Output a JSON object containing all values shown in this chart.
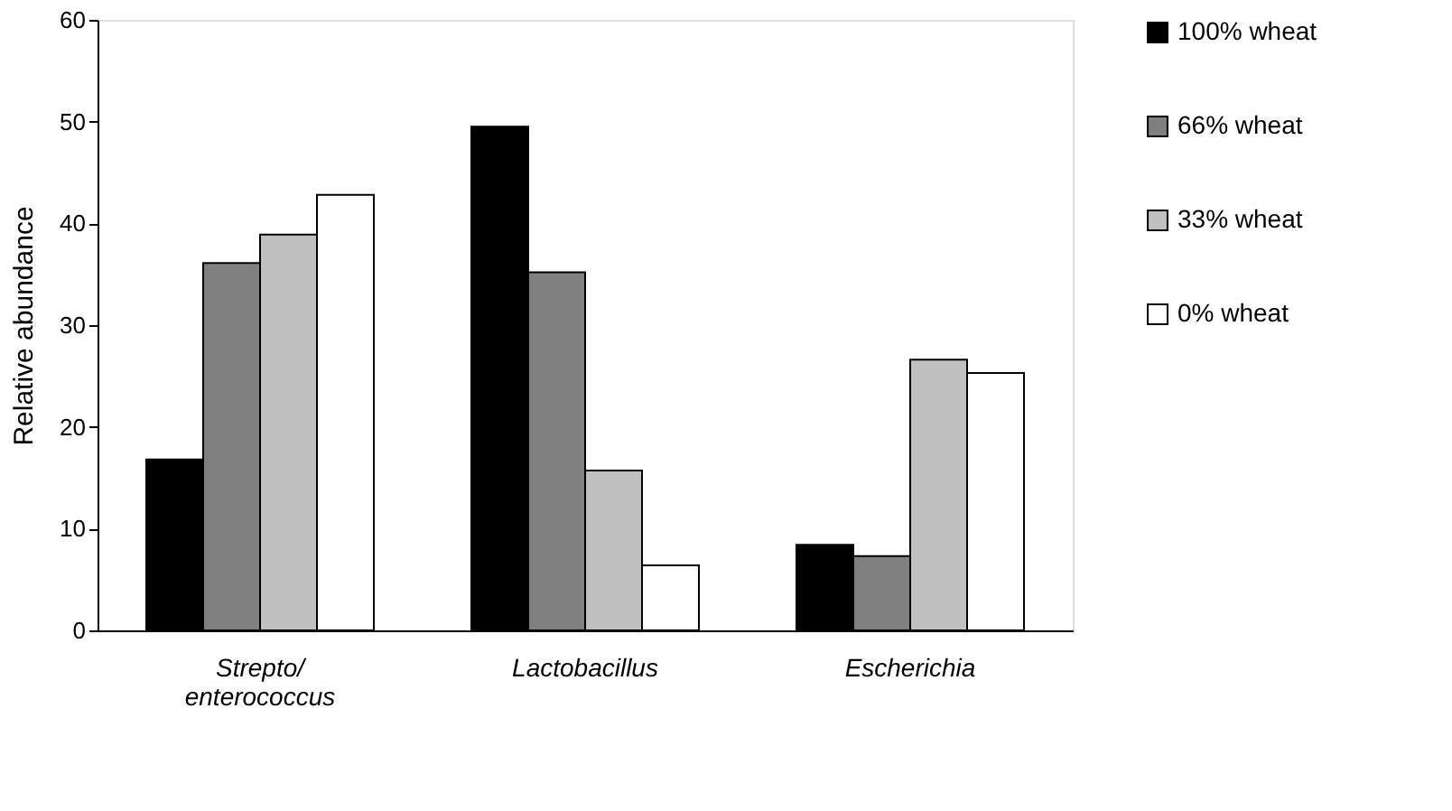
{
  "chart_data": {
    "type": "bar",
    "ylabel": "Relative abundance",
    "categories": [
      "Strepto/\nenterococcus",
      "Lactobacillus",
      "Escherichia"
    ],
    "series": [
      {
        "name": "100% wheat",
        "color": "#000000",
        "values": [
          16.8,
          49.5,
          8.4
        ]
      },
      {
        "name": "66% wheat",
        "color": "#808080",
        "values": [
          36.1,
          35.2,
          7.3
        ]
      },
      {
        "name": "33% wheat",
        "color": "#c0c0c0",
        "values": [
          38.9,
          15.7,
          26.6
        ]
      },
      {
        "name": "0% wheat",
        "color": "#ffffff",
        "values": [
          42.8,
          6.4,
          25.3
        ]
      }
    ],
    "ylim": [
      0,
      60
    ],
    "yticks": [
      0,
      10,
      20,
      30,
      40,
      50,
      60
    ],
    "grid": false,
    "legend": "right"
  }
}
